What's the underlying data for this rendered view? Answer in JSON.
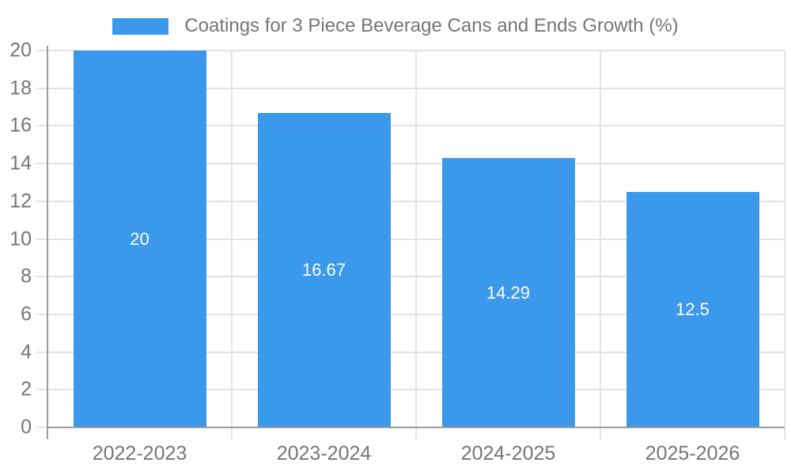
{
  "chart_data": {
    "type": "bar",
    "title": "Coatings for 3 Piece Beverage Cans and Ends Growth (%)",
    "categories": [
      "2022-2023",
      "2023-2024",
      "2024-2025",
      "2025-2026"
    ],
    "values": [
      20,
      16.67,
      14.29,
      12.5
    ],
    "bar_labels": [
      "20",
      "16.67",
      "14.29",
      "12.5"
    ],
    "xlabel": "",
    "ylabel": "",
    "ylim": [
      0,
      20
    ],
    "ytick_step": 2,
    "grid": true,
    "legend_position": "top",
    "colors": {
      "bar": "#3B99EC",
      "grid": "#E3E3E3",
      "axis": "#9C9C9C",
      "tick_label": "#757575",
      "title": "#757575",
      "value_label": "#FFFFFF",
      "background": "#FFFFFF"
    }
  }
}
